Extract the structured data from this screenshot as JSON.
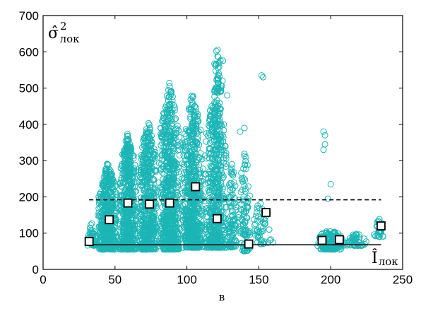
{
  "chart_data": {
    "type": "scatter",
    "xlabel": "в",
    "ylabel": "σ̂",
    "ylabel_superscript": "2",
    "ylabel_subscript": "лок",
    "xlim": [
      0,
      250
    ],
    "ylim": [
      0,
      700
    ],
    "xticks": [
      0,
      50,
      100,
      150,
      200,
      250
    ],
    "yticks": [
      0,
      100,
      200,
      300,
      400,
      500,
      600,
      700
    ],
    "grid": false,
    "colors": {
      "scatter": "#1bb5b5",
      "axis": "#000000",
      "marker_face": "#ffffff",
      "marker_edge": "#000000"
    },
    "scatter_clusters": [
      {
        "x": [
          30,
          38
        ],
        "y": [
          65,
          130
        ],
        "n": 60
      },
      {
        "x": [
          38,
          52
        ],
        "y": [
          55,
          300
        ],
        "n": 500
      },
      {
        "x": [
          52,
          66
        ],
        "y": [
          55,
          380
        ],
        "n": 550
      },
      {
        "x": [
          66,
          80
        ],
        "y": [
          55,
          420
        ],
        "n": 550
      },
      {
        "x": [
          80,
          96
        ],
        "y": [
          55,
          520
        ],
        "n": 650
      },
      {
        "x": [
          96,
          112
        ],
        "y": [
          60,
          495
        ],
        "n": 650
      },
      {
        "x": [
          112,
          128
        ],
        "y": [
          60,
          520
        ],
        "n": 550
      },
      {
        "x": [
          118,
          126
        ],
        "y": [
          490,
          620
        ],
        "n": 40
      },
      {
        "x": [
          128,
          135
        ],
        "y": [
          60,
          300
        ],
        "n": 100
      },
      {
        "x": [
          135,
          145
        ],
        "y": [
          50,
          330
        ],
        "n": 100
      },
      {
        "x": [
          145,
          160
        ],
        "y": [
          70,
          200
        ],
        "n": 50
      },
      {
        "x": [
          190,
          210
        ],
        "y": [
          55,
          110
        ],
        "n": 160
      },
      {
        "x": [
          210,
          225
        ],
        "y": [
          65,
          100
        ],
        "n": 50
      },
      {
        "x": [
          230,
          238
        ],
        "y": [
          90,
          140
        ],
        "n": 30
      }
    ],
    "scatter_outliers": [
      {
        "x": 152,
        "y": 535
      },
      {
        "x": 153,
        "y": 530
      },
      {
        "x": 195,
        "y": 380
      },
      {
        "x": 196,
        "y": 370
      },
      {
        "x": 196,
        "y": 345
      },
      {
        "x": 195,
        "y": 330
      },
      {
        "x": 200,
        "y": 235
      },
      {
        "x": 198,
        "y": 195
      },
      {
        "x": 128,
        "y": 480
      },
      {
        "x": 140,
        "y": 390
      },
      {
        "x": 137,
        "y": 380
      }
    ],
    "series": [
      {
        "type": "squares",
        "x": [
          32,
          46,
          59,
          74,
          88,
          106,
          121,
          143,
          155,
          194,
          206,
          235
        ],
        "y": [
          77,
          137,
          183,
          180,
          183,
          228,
          140,
          70,
          157,
          80,
          82,
          120
        ]
      },
      {
        "type": "hline",
        "style": "dashed",
        "y": 192,
        "x": [
          32,
          235
        ]
      },
      {
        "type": "hline",
        "style": "solid",
        "y": 68,
        "x": [
          30,
          235
        ],
        "label": "Î",
        "label_subscript": "лок"
      }
    ]
  }
}
